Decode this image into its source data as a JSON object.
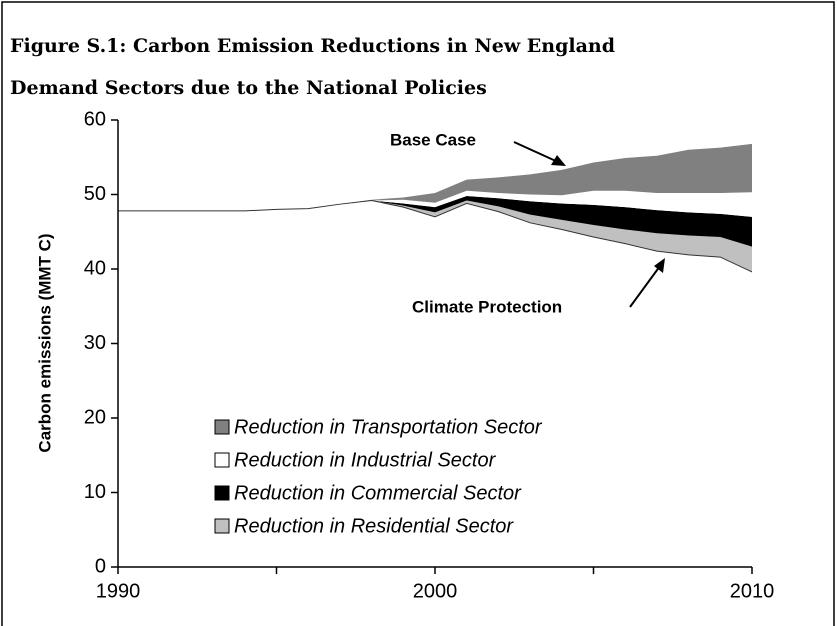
{
  "chart_data": {
    "type": "stacked_area",
    "title": [
      "Figure S.1:  Carbon Emission Reductions in New England",
      "Demand Sectors due to the National Policies"
    ],
    "ylabel": "Carbon emissions (MMT C)",
    "x": [
      1990,
      1991,
      1992,
      1993,
      1994,
      1995,
      1996,
      1997,
      1998,
      1999,
      2000,
      2001,
      2002,
      2003,
      2004,
      2005,
      2006,
      2007,
      2008,
      2009,
      2010
    ],
    "baseline": {
      "color": "#333333",
      "values": [
        47.8,
        47.8,
        47.8,
        47.8,
        47.8,
        48.0,
        48.1,
        48.7,
        49.2,
        48.3,
        47.0,
        48.8,
        47.7,
        46.2,
        45.3,
        44.3,
        43.4,
        42.4,
        41.9,
        41.6,
        39.6
      ]
    },
    "series": [
      {
        "name": "Reduction in Transportation Sector",
        "color": "#808080",
        "values": [
          0,
          0,
          0,
          0,
          0,
          0,
          0,
          0,
          0.1,
          0.3,
          1.3,
          1.5,
          2.1,
          2.7,
          3.4,
          3.8,
          4.4,
          5.0,
          5.8,
          6.1,
          6.5
        ]
      },
      {
        "name": "Reduction in Industrial Sector",
        "color": "#ffffff",
        "values": [
          0,
          0,
          0,
          0,
          0,
          0,
          0,
          0,
          0,
          0.5,
          0.6,
          0.7,
          0.7,
          0.9,
          1.1,
          1.9,
          2.2,
          2.3,
          2.6,
          2.8,
          3.3
        ]
      },
      {
        "name": "Reduction in Commercial Sector",
        "color": "#000000",
        "values": [
          0,
          0,
          0,
          0,
          0,
          0,
          0,
          0,
          0,
          0.3,
          0.7,
          0.6,
          1.1,
          1.8,
          2.2,
          2.7,
          3.0,
          3.1,
          3.1,
          3.1,
          4.0
        ]
      },
      {
        "name": "Reduction in Residential Sector",
        "color": "#c0c0c0",
        "values": [
          0,
          0,
          0,
          0,
          0,
          0,
          0,
          0,
          0,
          0.2,
          0.6,
          0.4,
          0.7,
          1.1,
          1.3,
          1.6,
          1.9,
          2.4,
          2.6,
          2.7,
          3.4
        ]
      }
    ],
    "annotations": [
      {
        "text": "Base Case"
      },
      {
        "text": "Climate Protection"
      }
    ],
    "xlim": [
      1990,
      2010
    ],
    "xticks": [
      1990,
      2000,
      2010
    ],
    "xticks_minor": [
      1995,
      2005
    ],
    "ylim": [
      0,
      60
    ],
    "yticks": [
      0,
      10,
      20,
      30,
      40,
      50,
      60
    ],
    "grid": false
  }
}
